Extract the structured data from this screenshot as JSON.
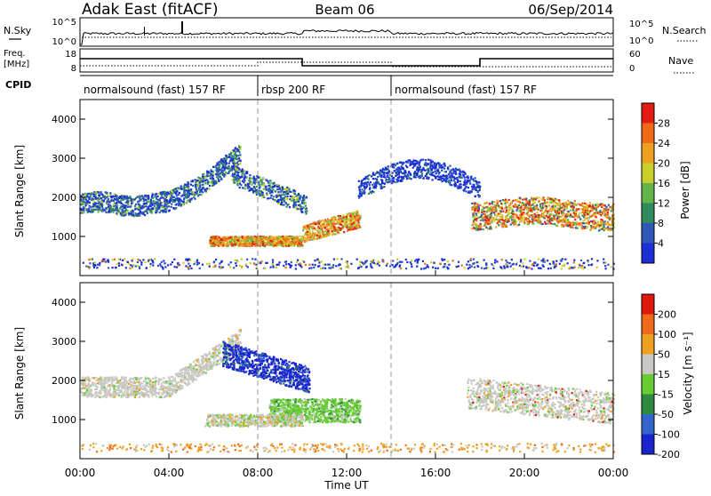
{
  "header": {
    "radar": "Adak East (fitACF)",
    "beam": "Beam 06",
    "date": "06/Sep/2014"
  },
  "top_panels": {
    "nsky_label": "N.Sky",
    "nsearch_label": "N.Search",
    "noise_ticks_left": [
      "10^5",
      "10^0"
    ],
    "noise_ticks_right": [
      "10^5",
      "10^0"
    ],
    "freq_label_line1": "Freq.",
    "freq_label_line2": "[MHz]",
    "freq_ticks": [
      "18",
      "8"
    ],
    "nave_label": "Nave",
    "nave_ticks": [
      "60",
      "0"
    ],
    "cpid_label": "CPID"
  },
  "cpid_segments": [
    {
      "label": "normalsound (fast) 157 RF",
      "start_h": 0,
      "end_h": 8
    },
    {
      "label": "rbsp 200 RF",
      "start_h": 8,
      "end_h": 14
    },
    {
      "label": "normalsound (fast) 157 RF",
      "start_h": 14,
      "end_h": 24
    }
  ],
  "axes": {
    "xlabel": "Time UT",
    "xticks": [
      "00:00",
      "04:00",
      "08:00",
      "12:00",
      "16:00",
      "20:00",
      "00:00"
    ],
    "ylabel": "Slant Range [km]",
    "yticks": [
      "1000",
      "2000",
      "3000",
      "4000"
    ]
  },
  "power_colorbar": {
    "label": "Power [dB]",
    "ticks": [
      "4",
      "8",
      "12",
      "16",
      "20",
      "24",
      "28"
    ],
    "colors": [
      "#1b2fd6",
      "#2e58b8",
      "#2f8a5e",
      "#63b44a",
      "#c8cf2a",
      "#f0a020",
      "#ef6a18",
      "#e41c12"
    ]
  },
  "velocity_colorbar": {
    "label": "Velocity [m s⁻¹]",
    "ticks": [
      "200",
      "100",
      "50",
      "15",
      "-15",
      "-50",
      "-100",
      "-200"
    ],
    "colors": [
      "#1a24cc",
      "#3366cc",
      "#2f8a40",
      "#66cc33",
      "#c8c8c4",
      "#f0a020",
      "#f06818",
      "#e01810"
    ]
  },
  "chart_data": [
    {
      "type": "heatmap",
      "title": "Power",
      "xlabel": "Time UT",
      "ylabel": "Slant Range [km]",
      "xlim": [
        0,
        24
      ],
      "ylim": [
        0,
        4500
      ],
      "colorbar": "Power [dB]",
      "features": [
        {
          "time_h": [
            0,
            7.2
          ],
          "range_km": [
            1600,
            3500
          ],
          "power_db": [
            4,
            16
          ]
        },
        {
          "time_h": [
            5.8,
            12.5
          ],
          "range_km": [
            750,
            1500
          ],
          "power_db": [
            12,
            28
          ]
        },
        {
          "time_h": [
            14,
            17.5
          ],
          "range_km": [
            1700,
            2800
          ],
          "power_db": [
            4,
            12
          ]
        },
        {
          "time_h": [
            18,
            24
          ],
          "range_km": [
            1200,
            2100
          ],
          "power_db": [
            16,
            28
          ]
        }
      ]
    },
    {
      "type": "heatmap",
      "title": "Velocity",
      "xlabel": "Time UT",
      "ylabel": "Slant Range [km]",
      "xlim": [
        0,
        24
      ],
      "ylim": [
        0,
        4500
      ],
      "colorbar": "Velocity [m s⁻¹]",
      "features": [
        {
          "time_h": [
            0,
            7.2
          ],
          "range_km": [
            1500,
            3500
          ],
          "velocity_ms": [
            -15,
            15
          ]
        },
        {
          "time_h": [
            6.3,
            10.3
          ],
          "range_km": [
            1600,
            2600
          ],
          "velocity_ms": [
            100,
            200
          ]
        },
        {
          "time_h": [
            8.5,
            12.5
          ],
          "range_km": [
            900,
            1700
          ],
          "velocity_ms": [
            15,
            50
          ]
        },
        {
          "time_h": [
            17.5,
            24
          ],
          "range_km": [
            1200,
            2000
          ],
          "velocity_ms": [
            -15,
            15
          ]
        }
      ]
    }
  ]
}
